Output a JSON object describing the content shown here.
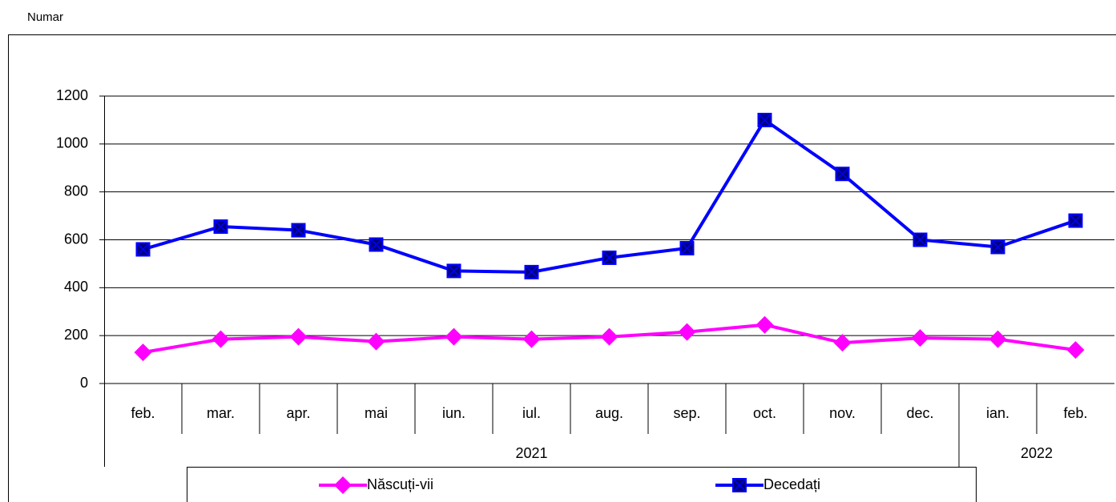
{
  "chart_data": {
    "type": "line",
    "y_label": "Numar",
    "categories": [
      "feb.",
      "mar.",
      "apr.",
      "mai",
      "iun.",
      "iul.",
      "aug.",
      "sep.",
      "oct.",
      "nov.",
      "dec.",
      "ian.",
      "feb."
    ],
    "year_groups": [
      {
        "label": "2021",
        "span": 11
      },
      {
        "label": "2022",
        "span": 2
      }
    ],
    "series": [
      {
        "name": "Născuți-vii",
        "color": "#ff00ff",
        "marker": "diamond",
        "values": [
          130,
          185,
          195,
          175,
          195,
          185,
          195,
          215,
          245,
          170,
          190,
          185,
          140
        ]
      },
      {
        "name": "Decedați",
        "color": "#0000ff",
        "marker": "square",
        "values": [
          560,
          655,
          640,
          580,
          470,
          465,
          525,
          565,
          1100,
          875,
          600,
          570,
          680
        ]
      }
    ],
    "ylim": [
      0,
      1200
    ],
    "yticks": [
      0,
      200,
      400,
      600,
      800,
      1000,
      1200
    ],
    "grid": true
  }
}
